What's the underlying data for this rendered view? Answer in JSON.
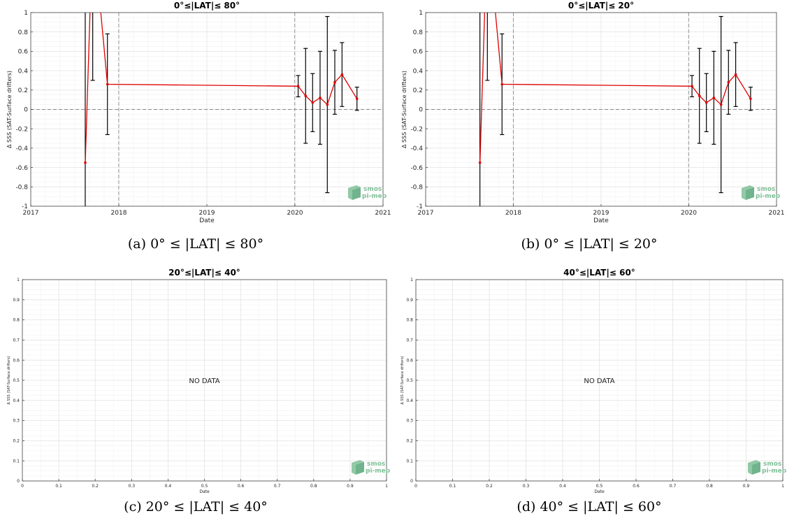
{
  "captions": [
    "(a) 0° ≤ |LAT| ≤ 80°",
    "(b) 0° ≤ |LAT| ≤ 20°",
    "(c) 20° ≤ |LAT| ≤ 40°",
    "(d) 40° ≤ |LAT| ≤ 60°"
  ],
  "logo": {
    "line1": "smos",
    "line2": "pi-mep",
    "color": "#7fbf98"
  },
  "colors": {
    "series": "#e00000",
    "errorbar": "#000000",
    "grid": "#e4e4e4",
    "dashed": "#888888"
  },
  "chart_data": [
    {
      "type": "line",
      "title": "0°≤|LAT|≤ 80°",
      "xlabel": "Date",
      "ylabel": "Δ SSS (SAT-Surface drifters)",
      "x_tick_labels": [
        "2017",
        "2018",
        "2019",
        "2020",
        "2021"
      ],
      "y_tick_labels": [
        "1",
        "0.8",
        "0.6",
        "0.4",
        "0.2",
        "0",
        "-0.2",
        "-0.4",
        "-0.6",
        "-0.8",
        "-1"
      ],
      "xlim": [
        "2017-01-01",
        "2021-01-01"
      ],
      "ylim": [
        -1,
        1
      ],
      "grid": true,
      "series": [
        {
          "x": [
            "2017-08-15",
            "2017-09-15",
            "2017-11-15",
            "2020-01-15",
            "2020-02-15",
            "2020-03-15",
            "2020-04-15",
            "2020-05-15",
            "2020-06-15",
            "2020-07-15",
            "2020-09-15"
          ],
          "y": [
            -0.55,
            1.9,
            0.26,
            0.24,
            0.14,
            0.07,
            0.12,
            0.05,
            0.28,
            0.36,
            0.11
          ],
          "yerr": [
            1.6,
            1.6,
            0.52,
            0.11,
            0.49,
            0.3,
            0.48,
            0.91,
            0.33,
            0.33,
            0.12
          ]
        }
      ]
    },
    {
      "type": "line",
      "title": "0°≤|LAT|≤ 20°",
      "xlabel": "Date",
      "ylabel": "Δ SSS (SAT-Surface drifters)",
      "x_tick_labels": [
        "2017",
        "2018",
        "2019",
        "2020",
        "2021"
      ],
      "y_tick_labels": [
        "1",
        "0.8",
        "0.6",
        "0.4",
        "0.2",
        "0",
        "-0.2",
        "-0.4",
        "-0.6",
        "-0.8",
        "-1"
      ],
      "xlim": [
        "2017-01-01",
        "2021-01-01"
      ],
      "ylim": [
        -1,
        1
      ],
      "grid": true,
      "series": [
        {
          "x": [
            "2017-08-15",
            "2017-09-15",
            "2017-11-15",
            "2020-01-15",
            "2020-02-15",
            "2020-03-15",
            "2020-04-15",
            "2020-05-15",
            "2020-06-15",
            "2020-07-15",
            "2020-09-15"
          ],
          "y": [
            -0.55,
            1.9,
            0.26,
            0.24,
            0.14,
            0.07,
            0.12,
            0.05,
            0.28,
            0.36,
            0.11
          ],
          "yerr": [
            1.6,
            1.6,
            0.52,
            0.11,
            0.49,
            0.3,
            0.48,
            0.91,
            0.33,
            0.33,
            0.12
          ]
        }
      ]
    },
    {
      "type": "line",
      "title": "20°≤|LAT|≤ 40°",
      "xlabel": "Date",
      "ylabel": "Δ SSS (SAT-Surface drifters)",
      "x_tick_labels": [
        "0",
        "0.1",
        "0.2",
        "0.3",
        "0.4",
        "0.5",
        "0.6",
        "0.7",
        "0.8",
        "0.9",
        "1"
      ],
      "y_tick_labels": [
        "1",
        "0.9",
        "0.8",
        "0.7",
        "0.6",
        "0.5",
        "0.4",
        "0.3",
        "0.2",
        "0.1",
        "0"
      ],
      "xlim": [
        0,
        1
      ],
      "ylim": [
        0,
        1
      ],
      "grid": true,
      "annotation": "NO DATA",
      "series": []
    },
    {
      "type": "line",
      "title": "40°≤|LAT|≤ 60°",
      "xlabel": "Date",
      "ylabel": "Δ SSS (SAT-Surface drifters)",
      "x_tick_labels": [
        "0",
        "0.1",
        "0.2",
        "0.3",
        "0.4",
        "0.5",
        "0.6",
        "0.7",
        "0.8",
        "0.9",
        "1"
      ],
      "y_tick_labels": [
        "1",
        "0.9",
        "0.8",
        "0.7",
        "0.6",
        "0.5",
        "0.4",
        "0.3",
        "0.2",
        "0.1",
        "0"
      ],
      "xlim": [
        0,
        1
      ],
      "ylim": [
        0,
        1
      ],
      "grid": true,
      "annotation": "NO DATA",
      "series": []
    }
  ]
}
